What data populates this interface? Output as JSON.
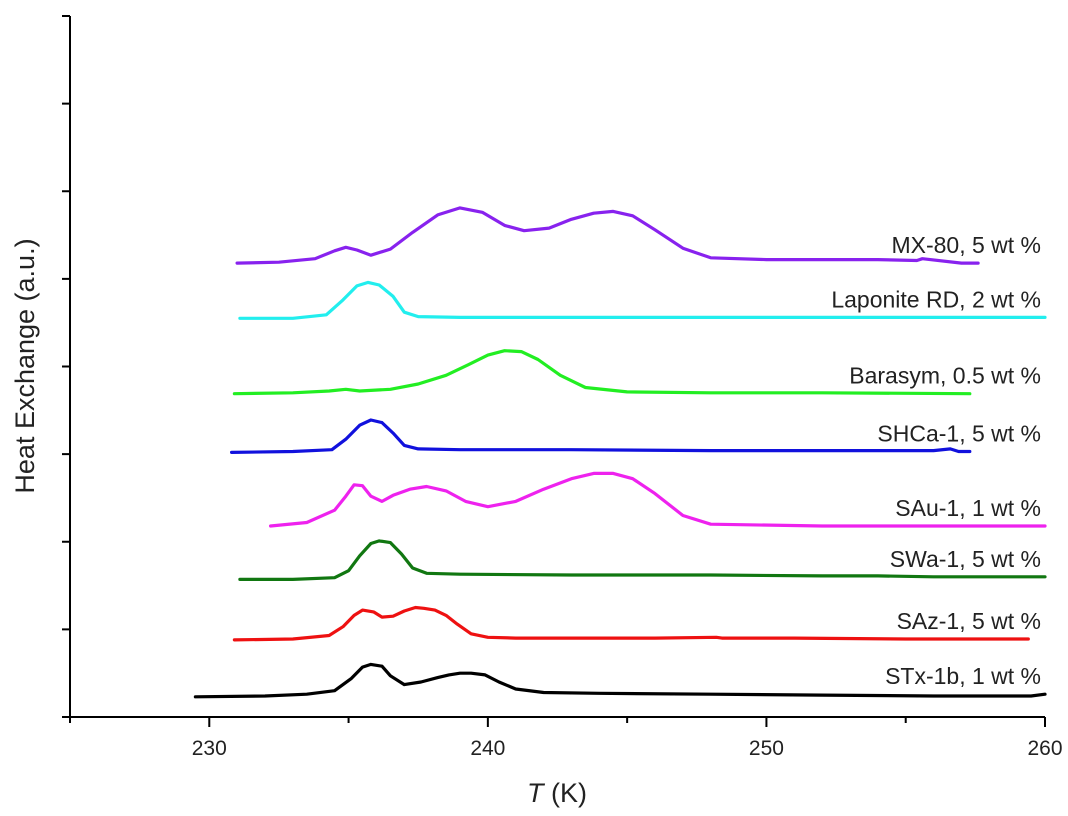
{
  "chart_data": {
    "type": "line",
    "xlabel_symbol": "T",
    "xlabel_unit": " (K)",
    "ylabel": "Heat Exchange (a.u.)",
    "xlim": [
      225,
      260
    ],
    "ylim": [
      0,
      8
    ],
    "x_ticks": [
      230,
      240,
      250,
      260
    ],
    "y_ticks": [
      0,
      1,
      2,
      3,
      4,
      5,
      6,
      7,
      8
    ],
    "grid": false,
    "legend": "none",
    "series": [
      {
        "name": "STx-1b, 1 wt %",
        "color": "#000000",
        "x": [
          229.5,
          232,
          233.5,
          234.5,
          235.1,
          235.5,
          235.8,
          236.2,
          236.5,
          237,
          237.6,
          238.2,
          238.6,
          239.0,
          239.4,
          239.9,
          240.4,
          241.0,
          242,
          244,
          248,
          252,
          256,
          259.5,
          260
        ],
        "y": [
          0.23,
          0.24,
          0.26,
          0.3,
          0.44,
          0.57,
          0.6,
          0.58,
          0.47,
          0.37,
          0.4,
          0.45,
          0.48,
          0.5,
          0.5,
          0.48,
          0.4,
          0.32,
          0.28,
          0.27,
          0.26,
          0.25,
          0.24,
          0.24,
          0.26
        ]
      },
      {
        "name": "SAz-1, 5 wt %",
        "color": "#ee1111",
        "x": [
          230.9,
          233,
          234.3,
          234.8,
          235.2,
          235.5,
          235.9,
          236.2,
          236.6,
          237.0,
          237.4,
          237.7,
          238.1,
          238.5,
          238.9,
          239.4,
          240,
          241,
          243,
          246,
          248.2,
          248.4,
          251,
          255,
          259.4
        ],
        "y": [
          0.88,
          0.89,
          0.93,
          1.03,
          1.16,
          1.22,
          1.2,
          1.14,
          1.15,
          1.21,
          1.25,
          1.24,
          1.22,
          1.16,
          1.06,
          0.95,
          0.91,
          0.9,
          0.9,
          0.9,
          0.91,
          0.9,
          0.9,
          0.89,
          0.89
        ]
      },
      {
        "name": "SWa-1, 5 wt %",
        "color": "#117711",
        "x": [
          231.1,
          233,
          234.5,
          235.0,
          235.4,
          235.8,
          236.1,
          236.5,
          236.9,
          237.3,
          237.8,
          239,
          243,
          248,
          252,
          254,
          256,
          258,
          260
        ],
        "y": [
          1.57,
          1.57,
          1.59,
          1.67,
          1.84,
          1.98,
          2.01,
          1.99,
          1.86,
          1.7,
          1.64,
          1.63,
          1.62,
          1.62,
          1.61,
          1.61,
          1.6,
          1.6,
          1.6
        ]
      },
      {
        "name": "SAu-1, 1 wt %",
        "color": "#ee22ee",
        "x": [
          232.2,
          233.5,
          234.5,
          234.9,
          235.2,
          235.5,
          235.8,
          236.2,
          236.6,
          237.2,
          237.8,
          238.5,
          239.2,
          240,
          241,
          242,
          243,
          243.8,
          244.5,
          245.2,
          246,
          247,
          248,
          252,
          256,
          260
        ],
        "y": [
          2.18,
          2.22,
          2.36,
          2.52,
          2.65,
          2.64,
          2.52,
          2.46,
          2.53,
          2.6,
          2.63,
          2.58,
          2.46,
          2.4,
          2.46,
          2.6,
          2.72,
          2.78,
          2.78,
          2.72,
          2.55,
          2.3,
          2.2,
          2.18,
          2.18,
          2.18
        ]
      },
      {
        "name": "SHCa-1, 5 wt %",
        "color": "#1111dd",
        "x": [
          230.8,
          233,
          234.4,
          234.9,
          235.4,
          235.8,
          236.2,
          236.6,
          237.0,
          237.5,
          239,
          243,
          248,
          252,
          256,
          256.6,
          256.9,
          257.3
        ],
        "y": [
          3.02,
          3.03,
          3.05,
          3.17,
          3.33,
          3.39,
          3.36,
          3.24,
          3.1,
          3.06,
          3.05,
          3.05,
          3.04,
          3.04,
          3.04,
          3.06,
          3.03,
          3.03
        ]
      },
      {
        "name": "Barasym, 0.5 wt %",
        "color": "#22ee22",
        "x": [
          230.9,
          233,
          234.3,
          234.9,
          235.4,
          236.5,
          237.5,
          238.5,
          239.3,
          240.0,
          240.6,
          241.2,
          241.8,
          242.6,
          243.5,
          245,
          248,
          252,
          257.3
        ],
        "y": [
          3.69,
          3.7,
          3.72,
          3.74,
          3.72,
          3.74,
          3.8,
          3.9,
          4.02,
          4.13,
          4.18,
          4.17,
          4.08,
          3.9,
          3.76,
          3.71,
          3.7,
          3.7,
          3.69
        ]
      },
      {
        "name": "Laponite RD, 2 wt %",
        "color": "#22eeee",
        "x": [
          231.1,
          233,
          234.2,
          234.8,
          235.3,
          235.7,
          236.1,
          236.6,
          237.0,
          237.5,
          239,
          243,
          248,
          252,
          256,
          260
        ],
        "y": [
          4.55,
          4.55,
          4.59,
          4.76,
          4.92,
          4.96,
          4.93,
          4.8,
          4.62,
          4.57,
          4.56,
          4.56,
          4.56,
          4.56,
          4.56,
          4.56
        ]
      },
      {
        "name": "MX-80, 5 wt %",
        "color": "#8822ee",
        "x": [
          231.0,
          232.5,
          233.8,
          234.5,
          234.9,
          235.3,
          235.8,
          236.5,
          237.3,
          238.2,
          239.0,
          239.8,
          240.6,
          241.3,
          242.2,
          243.0,
          243.8,
          244.5,
          245.2,
          246,
          247,
          248,
          250,
          252,
          254,
          255.4,
          255.6,
          257.0,
          257.6
        ],
        "y": [
          5.18,
          5.19,
          5.23,
          5.32,
          5.36,
          5.33,
          5.27,
          5.34,
          5.53,
          5.73,
          5.81,
          5.76,
          5.61,
          5.55,
          5.58,
          5.68,
          5.75,
          5.77,
          5.72,
          5.56,
          5.35,
          5.24,
          5.22,
          5.22,
          5.22,
          5.21,
          5.23,
          5.18,
          5.18
        ]
      }
    ]
  }
}
